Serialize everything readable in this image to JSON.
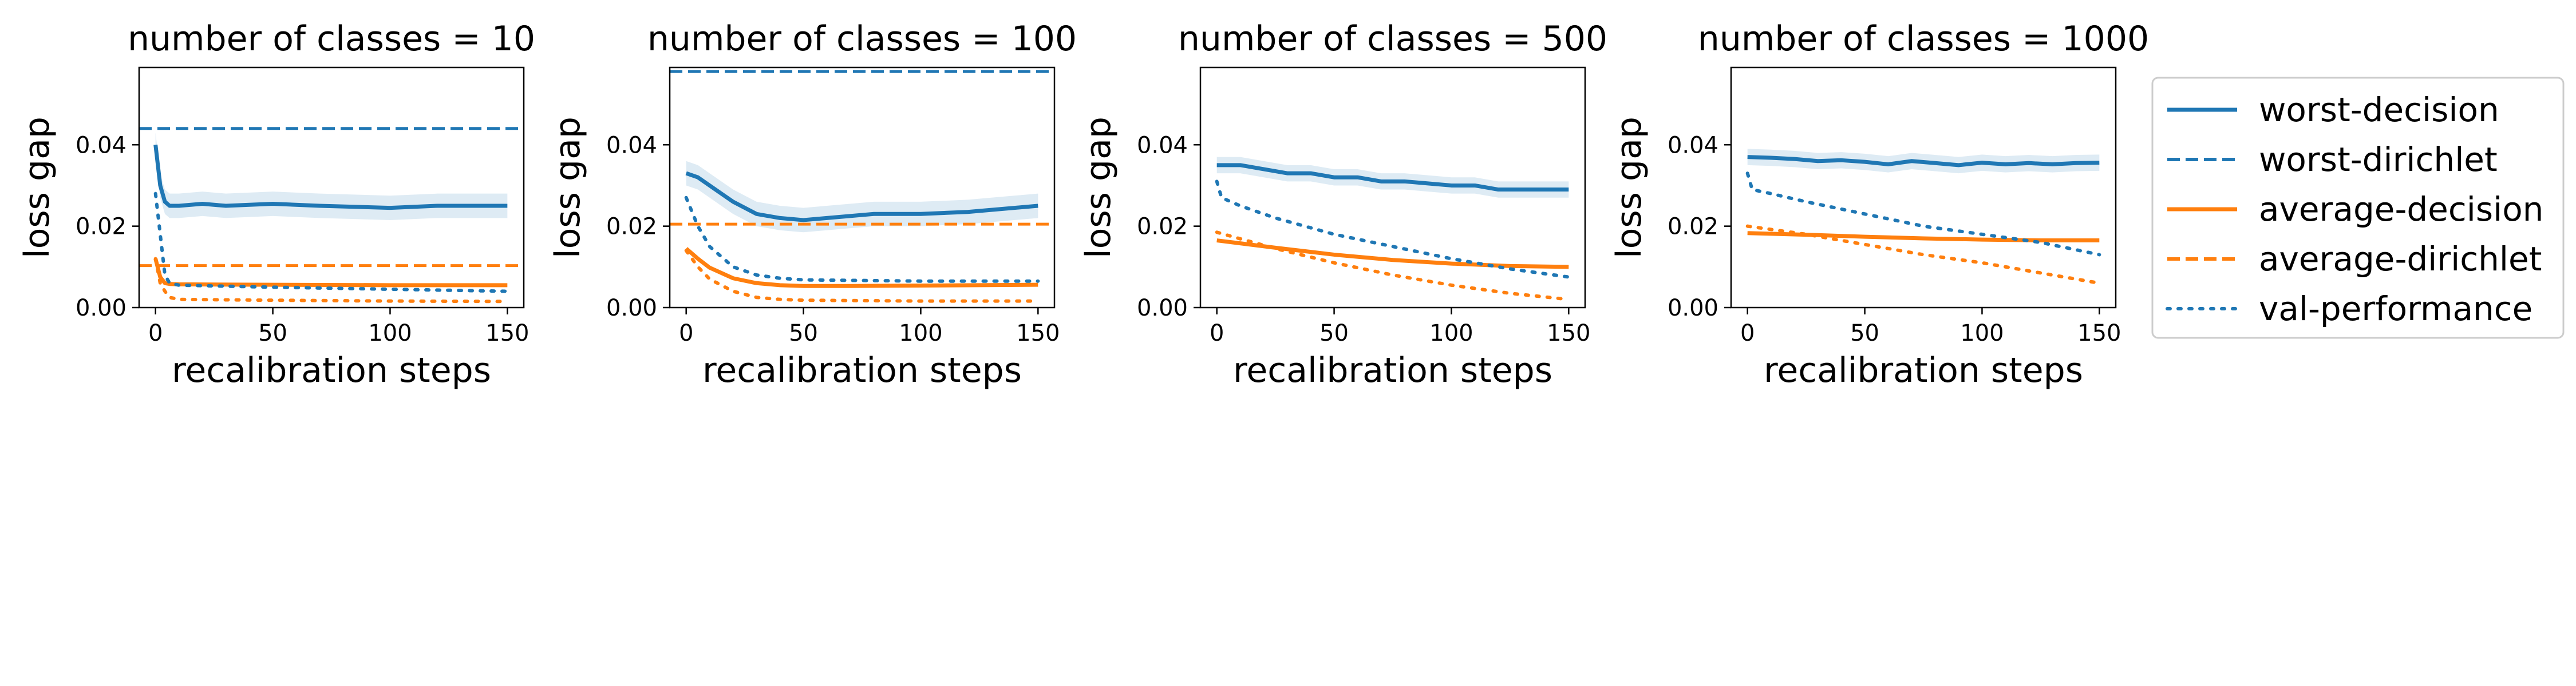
{
  "legend": {
    "placement": "right",
    "entries": [
      {
        "label": "worst-decision",
        "color": "#1f77b4",
        "style": "solid"
      },
      {
        "label": "worst-dirichlet",
        "color": "#1f77b4",
        "style": "dashed"
      },
      {
        "label": "average-decision",
        "color": "#ff7f0e",
        "style": "solid"
      },
      {
        "label": "average-dirichlet",
        "color": "#ff7f0e",
        "style": "dashed"
      },
      {
        "label": "val-performance",
        "color": "#1f77b4",
        "style": "dotted"
      }
    ]
  },
  "chart_data": [
    {
      "type": "line",
      "title": "number of classes = 10",
      "xlabel": "recalibration steps",
      "ylabel": "loss gap",
      "xlim": [
        -7,
        157
      ],
      "ylim": [
        0,
        0.059
      ],
      "xticks": [
        0,
        50,
        100,
        150
      ],
      "yticks": [
        0.0,
        0.02,
        0.04
      ],
      "yticklabels": [
        "0.00",
        "0.02",
        "0.04"
      ],
      "grid": false,
      "series": [
        {
          "name": "worst-decision",
          "color": "#1f77b4",
          "style": "solid",
          "band": 0.003,
          "x": [
            0,
            2,
            4,
            6,
            10,
            20,
            30,
            50,
            70,
            100,
            120,
            150
          ],
          "y": [
            0.04,
            0.03,
            0.026,
            0.025,
            0.025,
            0.0255,
            0.025,
            0.0255,
            0.025,
            0.0245,
            0.025,
            0.025
          ]
        },
        {
          "name": "worst-dirichlet",
          "color": "#1f77b4",
          "style": "dashed",
          "constant": 0.044
        },
        {
          "name": "average-decision",
          "color": "#ff7f0e",
          "style": "solid",
          "x": [
            0,
            2,
            4,
            6,
            10,
            50,
            100,
            150
          ],
          "y": [
            0.012,
            0.0075,
            0.006,
            0.0058,
            0.0057,
            0.0056,
            0.0055,
            0.0055
          ]
        },
        {
          "name": "average-dirichlet",
          "color": "#ff7f0e",
          "style": "dashed",
          "constant": 0.0103
        },
        {
          "name": "val-performance (worst)",
          "color": "#1f77b4",
          "style": "dotted",
          "x": [
            0,
            2,
            4,
            6,
            10,
            50,
            100,
            150
          ],
          "y": [
            0.028,
            0.018,
            0.008,
            0.006,
            0.0055,
            0.005,
            0.0045,
            0.004
          ]
        },
        {
          "name": "val-performance (average)",
          "color": "#ff7f0e",
          "style": "dotted",
          "x": [
            0,
            2,
            4,
            6,
            10,
            50,
            100,
            150
          ],
          "y": [
            0.012,
            0.006,
            0.004,
            0.0025,
            0.002,
            0.0018,
            0.0016,
            0.0015
          ]
        }
      ]
    },
    {
      "type": "line",
      "title": "number of classes = 100",
      "xlabel": "recalibration steps",
      "ylabel": "loss gap",
      "xlim": [
        -7,
        157
      ],
      "ylim": [
        0,
        0.059
      ],
      "xticks": [
        0,
        50,
        100,
        150
      ],
      "yticks": [
        0.0,
        0.02,
        0.04
      ],
      "yticklabels": [
        "0.00",
        "0.02",
        "0.04"
      ],
      "grid": false,
      "series": [
        {
          "name": "worst-decision",
          "color": "#1f77b4",
          "style": "solid",
          "band": 0.003,
          "x": [
            0,
            5,
            10,
            20,
            30,
            40,
            50,
            60,
            80,
            100,
            120,
            150
          ],
          "y": [
            0.033,
            0.032,
            0.03,
            0.026,
            0.023,
            0.022,
            0.0215,
            0.022,
            0.023,
            0.023,
            0.0235,
            0.025
          ]
        },
        {
          "name": "worst-dirichlet",
          "color": "#1f77b4",
          "style": "dashed",
          "constant": 0.058
        },
        {
          "name": "average-decision",
          "color": "#ff7f0e",
          "style": "solid",
          "x": [
            0,
            5,
            10,
            20,
            30,
            40,
            50,
            70,
            100,
            150
          ],
          "y": [
            0.0145,
            0.012,
            0.0098,
            0.0072,
            0.006,
            0.0055,
            0.0053,
            0.0053,
            0.0054,
            0.0056
          ]
        },
        {
          "name": "average-dirichlet",
          "color": "#ff7f0e",
          "style": "dashed",
          "constant": 0.0205
        },
        {
          "name": "val-performance (worst)",
          "color": "#1f77b4",
          "style": "dotted",
          "x": [
            0,
            5,
            10,
            20,
            30,
            40,
            50,
            100,
            150
          ],
          "y": [
            0.027,
            0.02,
            0.015,
            0.01,
            0.008,
            0.0072,
            0.0068,
            0.0065,
            0.0065
          ]
        },
        {
          "name": "val-performance (average)",
          "color": "#ff7f0e",
          "style": "dotted",
          "x": [
            0,
            5,
            10,
            20,
            30,
            40,
            50,
            100,
            150
          ],
          "y": [
            0.014,
            0.01,
            0.007,
            0.004,
            0.0025,
            0.002,
            0.0018,
            0.0016,
            0.0016
          ]
        }
      ]
    },
    {
      "type": "line",
      "title": "number of classes = 500",
      "xlabel": "recalibration steps",
      "ylabel": "loss gap",
      "xlim": [
        -7,
        157
      ],
      "ylim": [
        0,
        0.059
      ],
      "xticks": [
        0,
        50,
        100,
        150
      ],
      "yticks": [
        0.0,
        0.02,
        0.04
      ],
      "yticklabels": [
        "0.00",
        "0.02",
        "0.04"
      ],
      "grid": false,
      "series": [
        {
          "name": "worst-decision",
          "color": "#1f77b4",
          "style": "solid",
          "band": 0.002,
          "x": [
            0,
            10,
            20,
            30,
            40,
            50,
            60,
            70,
            80,
            90,
            100,
            110,
            120,
            130,
            140,
            150
          ],
          "y": [
            0.035,
            0.035,
            0.034,
            0.033,
            0.033,
            0.032,
            0.032,
            0.031,
            0.031,
            0.0305,
            0.03,
            0.03,
            0.029,
            0.029,
            0.029,
            0.029
          ]
        },
        {
          "name": "average-decision",
          "color": "#ff7f0e",
          "style": "solid",
          "x": [
            0,
            25,
            50,
            75,
            100,
            125,
            150
          ],
          "y": [
            0.0165,
            0.0147,
            0.013,
            0.0117,
            0.0108,
            0.0102,
            0.01
          ]
        },
        {
          "name": "val-performance (worst)",
          "color": "#1f77b4",
          "style": "dotted",
          "x": [
            0,
            2,
            10,
            25,
            50,
            75,
            100,
            125,
            150
          ],
          "y": [
            0.031,
            0.027,
            0.025,
            0.022,
            0.018,
            0.015,
            0.012,
            0.0095,
            0.0075
          ]
        },
        {
          "name": "val-performance (average)",
          "color": "#ff7f0e",
          "style": "dotted",
          "x": [
            0,
            25,
            50,
            75,
            100,
            125,
            150
          ],
          "y": [
            0.0185,
            0.0145,
            0.011,
            0.008,
            0.0055,
            0.0035,
            0.002
          ]
        }
      ]
    },
    {
      "type": "line",
      "title": "number of classes = 1000",
      "xlabel": "recalibration steps",
      "ylabel": "loss gap",
      "xlim": [
        -7,
        157
      ],
      "ylim": [
        0,
        0.059
      ],
      "xticks": [
        0,
        50,
        100,
        150
      ],
      "yticks": [
        0.0,
        0.02,
        0.04
      ],
      "yticklabels": [
        "0.00",
        "0.02",
        "0.04"
      ],
      "grid": false,
      "series": [
        {
          "name": "worst-decision",
          "color": "#1f77b4",
          "style": "solid",
          "band": 0.002,
          "x": [
            0,
            10,
            20,
            30,
            40,
            50,
            60,
            70,
            80,
            90,
            100,
            110,
            120,
            130,
            140,
            150
          ],
          "y": [
            0.037,
            0.0368,
            0.0365,
            0.036,
            0.0362,
            0.0358,
            0.0352,
            0.036,
            0.0355,
            0.035,
            0.0356,
            0.0352,
            0.0355,
            0.0352,
            0.0355,
            0.0356
          ]
        },
        {
          "name": "average-decision",
          "color": "#ff7f0e",
          "style": "solid",
          "x": [
            0,
            25,
            50,
            75,
            100,
            125,
            150
          ],
          "y": [
            0.0183,
            0.0179,
            0.0174,
            0.017,
            0.0167,
            0.0165,
            0.0165
          ]
        },
        {
          "name": "val-performance (worst)",
          "color": "#1f77b4",
          "style": "dotted",
          "x": [
            0,
            2,
            10,
            25,
            50,
            75,
            100,
            125,
            150
          ],
          "y": [
            0.033,
            0.029,
            0.028,
            0.026,
            0.023,
            0.02,
            0.018,
            0.016,
            0.013
          ]
        },
        {
          "name": "val-performance (average)",
          "color": "#ff7f0e",
          "style": "dotted",
          "x": [
            0,
            25,
            50,
            75,
            100,
            125,
            150
          ],
          "y": [
            0.02,
            0.018,
            0.0155,
            0.013,
            0.011,
            0.0085,
            0.006
          ]
        }
      ]
    }
  ]
}
